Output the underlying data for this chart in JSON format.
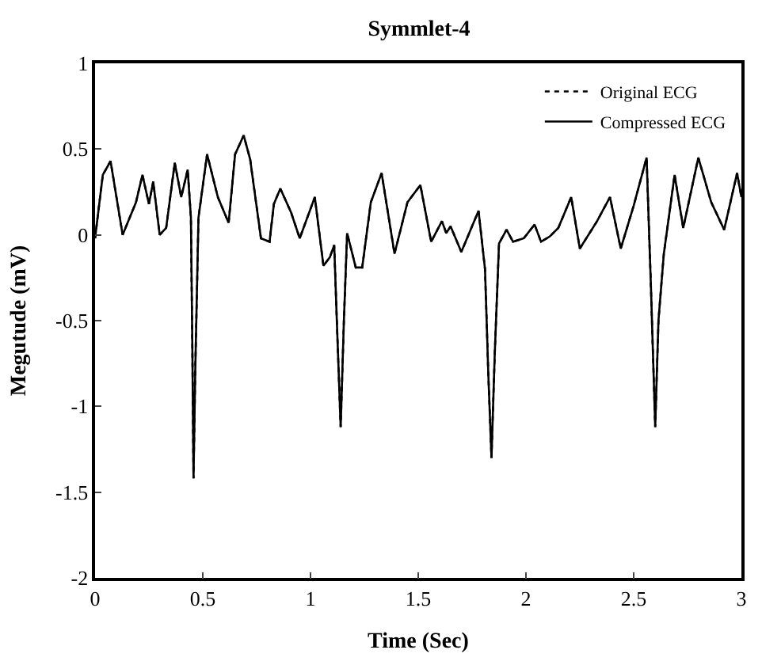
{
  "chart_data": {
    "type": "line",
    "title": "Symmlet-4",
    "xlabel": "Time (Sec)",
    "ylabel": "Megutude (mV)",
    "x": [
      0,
      0.036,
      0.072,
      0.128,
      0.19,
      0.22,
      0.25,
      0.27,
      0.3,
      0.33,
      0.37,
      0.4,
      0.43,
      0.445,
      0.452,
      0.457,
      0.465,
      0.48,
      0.52,
      0.57,
      0.62,
      0.65,
      0.69,
      0.72,
      0.77,
      0.81,
      0.83,
      0.86,
      0.91,
      0.95,
      1.02,
      1.06,
      1.09,
      1.11,
      1.125,
      1.14,
      1.155,
      1.17,
      1.21,
      1.24,
      1.28,
      1.33,
      1.39,
      1.45,
      1.51,
      1.56,
      1.61,
      1.63,
      1.65,
      1.7,
      1.78,
      1.81,
      1.825,
      1.84,
      1.855,
      1.875,
      1.91,
      1.94,
      1.99,
      2.04,
      2.07,
      2.11,
      2.15,
      2.21,
      2.25,
      2.33,
      2.39,
      2.44,
      2.5,
      2.56,
      2.58,
      2.6,
      2.615,
      2.64,
      2.69,
      2.73,
      2.8,
      2.86,
      2.92,
      2.98,
      3.0
    ],
    "series": [
      {
        "name": "Original ECG",
        "color": "#000000",
        "line_style": "dotted",
        "values": [
          -0.02,
          0.35,
          0.43,
          0.0,
          0.19,
          0.35,
          0.18,
          0.31,
          0.0,
          0.04,
          0.42,
          0.22,
          0.38,
          0.1,
          -0.7,
          -1.42,
          -0.8,
          0.1,
          0.47,
          0.22,
          0.07,
          0.47,
          0.58,
          0.44,
          -0.02,
          -0.04,
          0.18,
          0.27,
          0.13,
          -0.02,
          0.22,
          -0.18,
          -0.13,
          -0.06,
          -0.6,
          -1.12,
          -0.5,
          0.01,
          -0.19,
          -0.19,
          0.19,
          0.36,
          -0.11,
          0.19,
          0.29,
          -0.04,
          0.08,
          0.01,
          0.05,
          -0.1,
          0.14,
          -0.2,
          -0.8,
          -1.3,
          -0.7,
          -0.05,
          0.03,
          -0.04,
          -0.02,
          0.06,
          -0.04,
          -0.01,
          0.04,
          0.22,
          -0.08,
          0.08,
          0.22,
          -0.08,
          0.17,
          0.45,
          -0.3,
          -1.12,
          -0.5,
          -0.11,
          0.35,
          0.04,
          0.45,
          0.19,
          0.03,
          0.36,
          0.22
        ]
      },
      {
        "name": "Compressed ECG",
        "color": "#000000",
        "line_style": "solid",
        "values": [
          -0.02,
          0.35,
          0.43,
          0.0,
          0.19,
          0.35,
          0.18,
          0.31,
          0.0,
          0.04,
          0.42,
          0.22,
          0.38,
          0.1,
          -0.7,
          -1.42,
          -0.8,
          0.1,
          0.47,
          0.22,
          0.07,
          0.47,
          0.58,
          0.44,
          -0.02,
          -0.04,
          0.18,
          0.27,
          0.13,
          -0.02,
          0.22,
          -0.18,
          -0.13,
          -0.06,
          -0.6,
          -1.12,
          -0.5,
          0.01,
          -0.19,
          -0.19,
          0.19,
          0.36,
          -0.11,
          0.19,
          0.29,
          -0.04,
          0.08,
          0.01,
          0.05,
          -0.1,
          0.14,
          -0.2,
          -0.8,
          -1.3,
          -0.7,
          -0.05,
          0.03,
          -0.04,
          -0.02,
          0.06,
          -0.04,
          -0.01,
          0.04,
          0.22,
          -0.08,
          0.08,
          0.22,
          -0.08,
          0.17,
          0.45,
          -0.3,
          -1.12,
          -0.5,
          -0.11,
          0.35,
          0.04,
          0.45,
          0.19,
          0.03,
          0.36,
          0.22
        ]
      }
    ],
    "xlim": [
      0,
      3
    ],
    "xticks": [
      0,
      0.5,
      1,
      1.5,
      2,
      2.5,
      3
    ],
    "ylim": [
      -2,
      1
    ],
    "yticks": [
      -2,
      -1.5,
      -1,
      -0.5,
      0,
      0.5,
      1
    ],
    "legend": "top right",
    "grid": false
  }
}
